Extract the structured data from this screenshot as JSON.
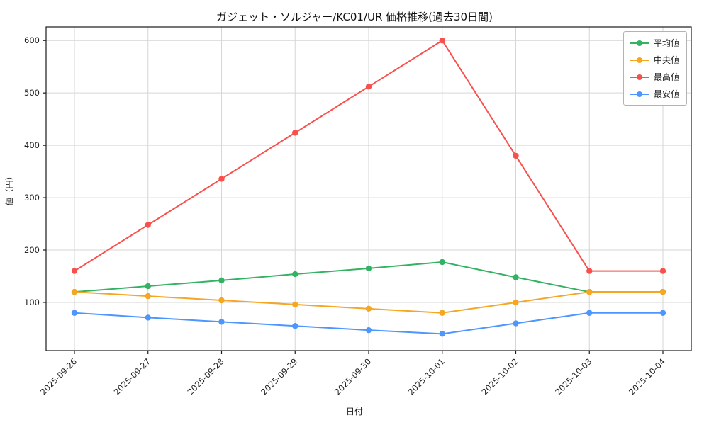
{
  "chart_data": {
    "type": "line",
    "title": "ガジェット・ソルジャー/KC01/UR 価格推移(過去30日間)",
    "xlabel": "日付",
    "ylabel": "値（円）",
    "x": [
      "2025-09-26",
      "2025-09-27",
      "2025-09-28",
      "2025-09-29",
      "2025-09-30",
      "2025-10-01",
      "2025-10-02",
      "2025-10-03",
      "2025-10-04"
    ],
    "series": [
      {
        "name": "平均値",
        "color": "#34b264",
        "values": [
          120,
          131,
          142,
          154,
          165,
          177,
          148,
          120,
          120
        ]
      },
      {
        "name": "中央値",
        "color": "#f5a623",
        "values": [
          120,
          112,
          104,
          96,
          88,
          80,
          100,
          120,
          120
        ]
      },
      {
        "name": "最高値",
        "color": "#f8514d",
        "values": [
          160,
          248,
          336,
          424,
          512,
          600,
          380,
          160,
          160
        ]
      },
      {
        "name": "最安値",
        "color": "#4d96ff",
        "values": [
          80,
          71,
          63,
          55,
          47,
          40,
          60,
          80,
          80
        ]
      }
    ],
    "y_ticks": [
      100,
      200,
      300,
      400,
      500,
      600
    ],
    "ylim": [
      8,
      626
    ],
    "grid": true,
    "legend_position": "upper right",
    "colors": {
      "grid": "#d6d6d6",
      "axis": "#1a1a1a",
      "tick_label": "#222222",
      "background": "#ffffff"
    }
  }
}
